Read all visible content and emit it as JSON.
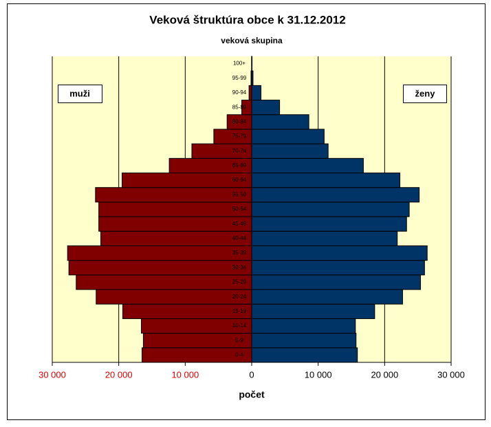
{
  "chart_data": {
    "type": "pyramid",
    "title": "Veková štruktúra obce k 31.12.2012",
    "subtitle": "veková skupina",
    "x_label": "počet",
    "categories": [
      "0-4",
      "5-9",
      "10-14",
      "15-19",
      "20-24",
      "25-29",
      "30-34",
      "35-39",
      "40-44",
      "45-49",
      "50-54",
      "55-59",
      "60-64",
      "65-69",
      "70-74",
      "75-79",
      "80-84",
      "85-89",
      "90-94",
      "95-99",
      "100+"
    ],
    "series": [
      {
        "name": "muži",
        "color": "#800000",
        "values": [
          -16500,
          -16300,
          -16600,
          -19400,
          -23400,
          -26400,
          -27500,
          -27700,
          -22700,
          -23000,
          -23000,
          -23500,
          -19500,
          -12400,
          -9000,
          -5700,
          -3700,
          -1500,
          -400,
          -100,
          -20
        ]
      },
      {
        "name": "ženy",
        "color": "#003366",
        "values": [
          15900,
          15700,
          15600,
          18500,
          22700,
          25400,
          26000,
          26400,
          21900,
          23300,
          23700,
          25200,
          22300,
          16800,
          11500,
          10900,
          8600,
          4200,
          1400,
          200,
          60
        ]
      }
    ],
    "xlim": [
      -30000,
      30000
    ],
    "xticks": [
      {
        "value": -30000,
        "label": "30 000"
      },
      {
        "value": -20000,
        "label": "20 000"
      },
      {
        "value": -10000,
        "label": "10 000"
      },
      0,
      {
        "value": 10000,
        "label": "10 000"
      },
      {
        "value": 20000,
        "label": "20 000"
      },
      {
        "value": 30000,
        "label": "30 000"
      }
    ],
    "grid": true,
    "background": "#ffffcc"
  }
}
